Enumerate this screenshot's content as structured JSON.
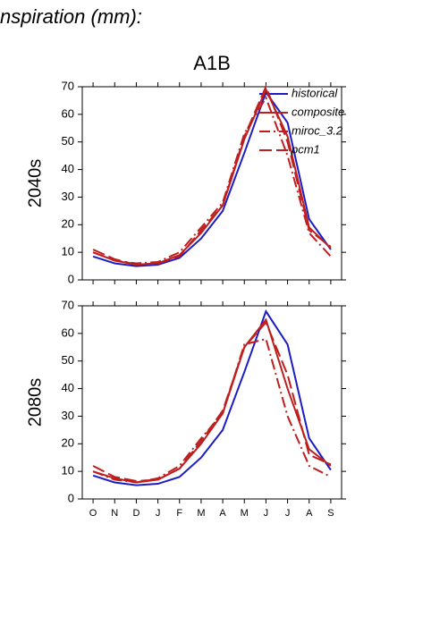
{
  "title": "nspiration (mm):",
  "subtitle": "A1B",
  "chart_data": [
    {
      "type": "line",
      "ylabel": "2040s",
      "ylim": [
        0,
        70
      ],
      "yticks": [
        0,
        10,
        20,
        30,
        40,
        50,
        60,
        70
      ],
      "legend": "top-right",
      "series": [
        {
          "name": "historical",
          "color": "#1c1cc4",
          "dash": "solid",
          "values": [
            8.5,
            6,
            5,
            5.5,
            8,
            15,
            25,
            46,
            68,
            57,
            22,
            11
          ]
        },
        {
          "name": "composite",
          "color": "#be1e1e",
          "dash": "solid",
          "values": [
            10,
            7,
            5.5,
            6,
            9,
            17,
            27,
            51,
            69,
            52,
            19,
            11.5
          ]
        },
        {
          "name": "miroc_3.2",
          "color": "#be1e1e",
          "dash": "dashdot",
          "values": [
            10,
            7,
            6,
            6.5,
            10,
            19,
            28,
            53,
            66,
            45,
            17,
            8.5
          ]
        },
        {
          "name": "pcm1",
          "color": "#be1e1e",
          "dash": "dashed",
          "values": [
            11,
            7.5,
            5.5,
            6,
            8.5,
            18,
            27,
            52,
            70,
            50,
            18,
            12
          ]
        }
      ]
    },
    {
      "type": "line",
      "ylabel": "2080s",
      "ylim": [
        0,
        70
      ],
      "yticks": [
        0,
        10,
        20,
        30,
        40,
        50,
        60,
        70
      ],
      "categories": [
        "O",
        "N",
        "D",
        "J",
        "F",
        "M",
        "A",
        "M",
        "J",
        "J",
        "A",
        "S"
      ],
      "series": [
        {
          "color": "#1c1cc4",
          "dash": "solid",
          "values": [
            8.5,
            6,
            5,
            5.5,
            8,
            15,
            25,
            46,
            68,
            56,
            22,
            10.5
          ]
        },
        {
          "color": "#be1e1e",
          "dash": "solid",
          "values": [
            10,
            7.5,
            6,
            7,
            11,
            20,
            31,
            55,
            65,
            40,
            18,
            12
          ]
        },
        {
          "color": "#be1e1e",
          "dash": "dashdot",
          "values": [
            10,
            7,
            6,
            7.5,
            12,
            22,
            31,
            56,
            58,
            30,
            12,
            8
          ]
        },
        {
          "color": "#be1e1e",
          "dash": "dashed",
          "values": [
            12,
            8,
            6.5,
            7,
            11,
            21,
            32,
            55,
            64,
            45,
            16,
            12.5
          ]
        }
      ]
    }
  ]
}
